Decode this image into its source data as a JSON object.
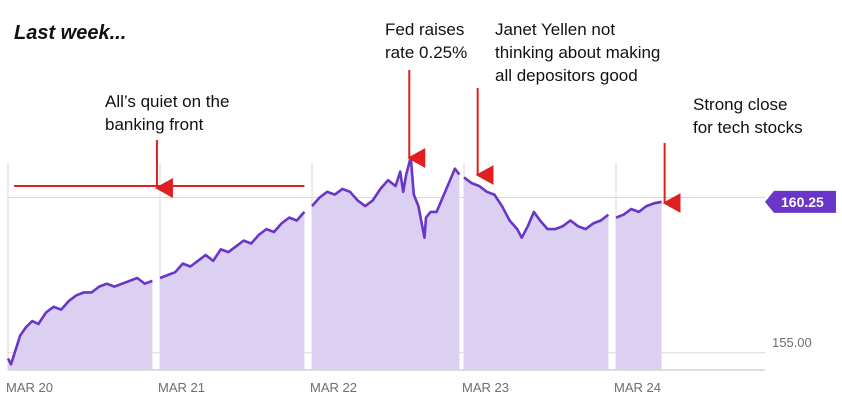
{
  "title": "Last week...",
  "chart_data": {
    "type": "area",
    "x_ticks": [
      "MAR 20",
      "MAR 21",
      "MAR 22",
      "MAR 23",
      "MAR 24"
    ],
    "y_tick_labels": [
      "155.00"
    ],
    "last_value_label": "160.25",
    "ylim": [
      154.4,
      161.6
    ],
    "series": [
      {
        "values": [
          [
            0,
            154.8
          ],
          [
            0.02,
            154.6
          ],
          [
            0.05,
            155.1
          ],
          [
            0.08,
            155.6
          ],
          [
            0.12,
            155.9
          ],
          [
            0.16,
            156.1
          ],
          [
            0.2,
            156.0
          ],
          [
            0.25,
            156.4
          ],
          [
            0.3,
            156.6
          ],
          [
            0.35,
            156.5
          ],
          [
            0.4,
            156.8
          ],
          [
            0.45,
            157.0
          ],
          [
            0.5,
            157.1
          ],
          [
            0.55,
            157.1
          ],
          [
            0.6,
            157.3
          ],
          [
            0.65,
            157.4
          ],
          [
            0.7,
            157.3
          ],
          [
            0.75,
            157.4
          ],
          [
            0.8,
            157.5
          ],
          [
            0.85,
            157.6
          ],
          [
            0.9,
            157.4
          ],
          [
            0.95,
            157.5
          ],
          [
            1.0,
            157.6
          ],
          [
            1.05,
            157.7
          ],
          [
            1.1,
            157.8
          ],
          [
            1.15,
            158.1
          ],
          [
            1.2,
            158.0
          ],
          [
            1.25,
            158.2
          ],
          [
            1.3,
            158.4
          ],
          [
            1.35,
            158.2
          ],
          [
            1.4,
            158.6
          ],
          [
            1.45,
            158.5
          ],
          [
            1.5,
            158.7
          ],
          [
            1.55,
            158.9
          ],
          [
            1.6,
            158.8
          ],
          [
            1.65,
            159.1
          ],
          [
            1.7,
            159.3
          ],
          [
            1.75,
            159.2
          ],
          [
            1.8,
            159.5
          ],
          [
            1.85,
            159.7
          ],
          [
            1.9,
            159.6
          ],
          [
            1.95,
            159.9
          ],
          [
            2.0,
            160.1
          ],
          [
            2.05,
            160.4
          ],
          [
            2.1,
            160.6
          ],
          [
            2.15,
            160.5
          ],
          [
            2.2,
            160.7
          ],
          [
            2.25,
            160.6
          ],
          [
            2.3,
            160.3
          ],
          [
            2.35,
            160.1
          ],
          [
            2.4,
            160.3
          ],
          [
            2.45,
            160.7
          ],
          [
            2.5,
            161.0
          ],
          [
            2.55,
            160.8
          ],
          [
            2.58,
            161.3
          ],
          [
            2.6,
            160.6
          ],
          [
            2.62,
            161.2
          ],
          [
            2.65,
            161.8
          ],
          [
            2.67,
            160.5
          ],
          [
            2.7,
            160.1
          ],
          [
            2.74,
            159.0
          ],
          [
            2.75,
            159.7
          ],
          [
            2.78,
            159.9
          ],
          [
            2.82,
            159.9
          ],
          [
            2.86,
            160.4
          ],
          [
            2.9,
            160.9
          ],
          [
            2.94,
            161.4
          ],
          [
            2.97,
            161.2
          ],
          [
            3.0,
            161.1
          ],
          [
            3.05,
            160.9
          ],
          [
            3.1,
            160.8
          ],
          [
            3.15,
            160.6
          ],
          [
            3.2,
            160.5
          ],
          [
            3.25,
            160.1
          ],
          [
            3.3,
            159.6
          ],
          [
            3.35,
            159.3
          ],
          [
            3.38,
            159.0
          ],
          [
            3.42,
            159.4
          ],
          [
            3.46,
            159.9
          ],
          [
            3.5,
            159.6
          ],
          [
            3.55,
            159.3
          ],
          [
            3.6,
            159.3
          ],
          [
            3.65,
            159.4
          ],
          [
            3.7,
            159.6
          ],
          [
            3.75,
            159.4
          ],
          [
            3.8,
            159.3
          ],
          [
            3.85,
            159.5
          ],
          [
            3.9,
            159.6
          ],
          [
            3.95,
            159.8
          ],
          [
            4.0,
            159.7
          ],
          [
            4.05,
            159.8
          ],
          [
            4.1,
            160.0
          ],
          [
            4.15,
            159.9
          ],
          [
            4.2,
            160.1
          ],
          [
            4.25,
            160.2
          ],
          [
            4.3,
            160.25
          ]
        ]
      }
    ],
    "annotations": [
      {
        "x": 0.98,
        "text": "All’s quiet on the\nbanking front"
      },
      {
        "x": 2.64,
        "text": "Fed raises\nrate 0.25%"
      },
      {
        "x": 3.09,
        "text": "Janet Yellen not\nthinking about making\nall depositors good"
      },
      {
        "x": 4.32,
        "text": "Strong close\nfor tech stocks"
      }
    ],
    "reference_line": {
      "value": 160.8,
      "x_start": 0.0,
      "x_end": 1.95,
      "color": "#e02020"
    },
    "colors": {
      "line": "#6a35c9",
      "fill": "#dcd0f2",
      "arrow": "#e02020",
      "badge": "#6a35c9",
      "grid": "#d8d8d8"
    }
  }
}
